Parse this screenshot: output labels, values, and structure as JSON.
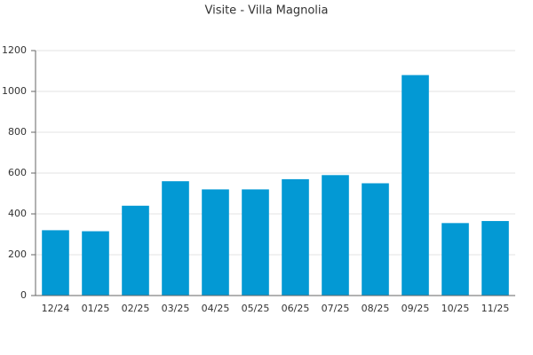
{
  "chart_data": {
    "type": "bar",
    "title": "Visite - Villa Magnolia",
    "categories": [
      "12/24",
      "01/25",
      "02/25",
      "03/25",
      "04/25",
      "05/25",
      "06/25",
      "07/25",
      "08/25",
      "09/25",
      "10/25",
      "11/25"
    ],
    "values": [
      320,
      315,
      440,
      560,
      520,
      520,
      570,
      590,
      550,
      1080,
      355,
      365
    ],
    "color": "#0399d4",
    "ylim": [
      0,
      1200
    ],
    "yticks": [
      0,
      200,
      400,
      600,
      800,
      1000,
      1200
    ],
    "grid": true
  }
}
